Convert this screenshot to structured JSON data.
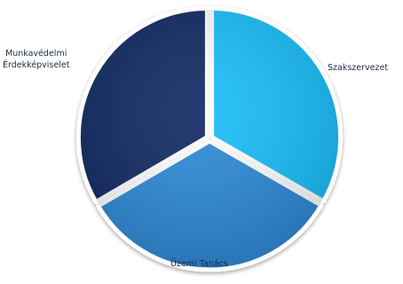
{
  "chart_data": {
    "type": "pie",
    "categories": [
      "Szakszervezet",
      "Üzemi Tanács",
      "Munkavédelmi Érdekképviselet"
    ],
    "values": [
      33.3,
      33.3,
      33.4
    ],
    "label_lines": [
      [
        "Szakszervezet"
      ],
      [
        "Üzemi Tanács"
      ],
      [
        "Munkavédelmi",
        "Érdekképviselet"
      ]
    ],
    "colors": [
      "#19bdf9",
      "#2b87d6",
      "#0b2761"
    ],
    "start_angle_deg": 0,
    "direction": "clockwise",
    "legend": "none"
  }
}
